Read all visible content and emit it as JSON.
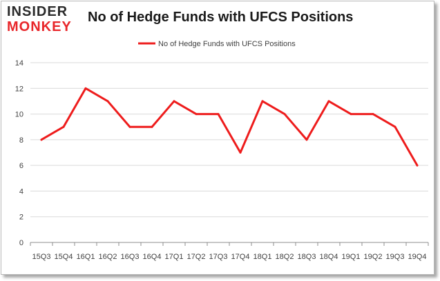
{
  "logo": {
    "line1": "INSIDER",
    "line2": "MONKEY"
  },
  "colors": {
    "series": "#ee1c1c",
    "grid": "#d9d9d9",
    "axis": "#8c8c8c",
    "text": "#404040",
    "logo_red": "#e8262a"
  },
  "chart_data": {
    "type": "line",
    "title": "No of Hedge Funds with UFCS Positions",
    "xlabel": "",
    "ylabel": "",
    "categories": [
      "15Q3",
      "15Q4",
      "16Q1",
      "16Q2",
      "16Q3",
      "16Q4",
      "17Q1",
      "17Q2",
      "17Q3",
      "17Q4",
      "18Q1",
      "18Q2",
      "18Q3",
      "18Q4",
      "19Q1",
      "19Q2",
      "19Q3",
      "19Q4"
    ],
    "series": [
      {
        "name": "No of Hedge Funds with UFCS Positions",
        "values": [
          8,
          9,
          12,
          11,
          9,
          9,
          11,
          10,
          10,
          7,
          11,
          10,
          8,
          11,
          10,
          10,
          9,
          6
        ]
      }
    ],
    "ylim": [
      0,
      14
    ],
    "yticks": [
      0,
      2,
      4,
      6,
      8,
      10,
      12,
      14
    ],
    "grid": true,
    "legend": "top-center"
  }
}
